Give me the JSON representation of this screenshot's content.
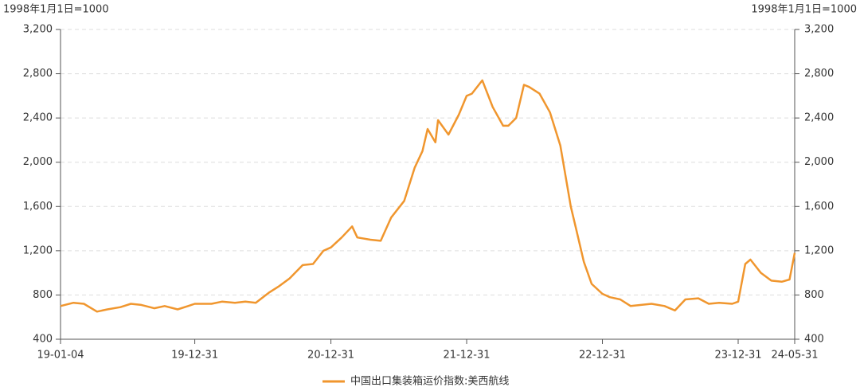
{
  "chart_data": {
    "type": "line",
    "y_label": "1998年1月1日=1000",
    "y2_label": "1998年1月1日=1000",
    "x": [
      "19-01-04",
      "19-02-08",
      "19-03-08",
      "19-04-12",
      "19-05-10",
      "19-06-14",
      "19-07-12",
      "19-08-09",
      "19-09-13",
      "19-10-11",
      "19-11-15",
      "19-12-13",
      "19-12-31",
      "20-01-17",
      "20-02-14",
      "20-03-13",
      "20-04-17",
      "20-05-15",
      "20-06-12",
      "20-07-17",
      "20-08-14",
      "20-09-11",
      "20-10-16",
      "20-11-13",
      "20-12-11",
      "20-12-31",
      "21-01-29",
      "21-02-26",
      "21-03-12",
      "21-04-16",
      "21-05-14",
      "21-06-11",
      "21-07-16",
      "21-08-13",
      "21-09-03",
      "21-09-17",
      "21-10-08",
      "21-10-15",
      "21-11-12",
      "21-12-10",
      "21-12-31",
      "22-01-14",
      "22-02-11",
      "22-03-11",
      "22-04-08",
      "22-04-22",
      "22-05-13",
      "22-06-03",
      "22-06-17",
      "22-07-15",
      "22-08-12",
      "22-09-09",
      "22-10-07",
      "22-10-21",
      "22-11-11",
      "22-12-02",
      "22-12-31",
      "23-01-20",
      "23-02-17",
      "23-03-17",
      "23-04-14",
      "23-05-12",
      "23-06-16",
      "23-07-14",
      "23-08-11",
      "23-09-15",
      "23-10-13",
      "23-11-10",
      "23-12-15",
      "23-12-31",
      "24-01-19",
      "24-02-02",
      "24-03-01",
      "24-03-29",
      "24-04-26",
      "24-05-17",
      "24-05-31"
    ],
    "series": [
      {
        "name": "中国出口集装箱运价指数:美西航线",
        "color": "#f0962e",
        "values": [
          700,
          730,
          720,
          650,
          670,
          690,
          720,
          710,
          680,
          700,
          670,
          700,
          720,
          720,
          720,
          740,
          730,
          740,
          730,
          820,
          880,
          950,
          1070,
          1080,
          1200,
          1230,
          1320,
          1420,
          1320,
          1300,
          1290,
          1500,
          1650,
          1950,
          2100,
          2300,
          2180,
          2380,
          2250,
          2430,
          2600,
          2620,
          2740,
          2500,
          2330,
          2330,
          2400,
          2700,
          2680,
          2620,
          2450,
          2150,
          1600,
          1400,
          1100,
          900,
          810,
          780,
          760,
          700,
          710,
          720,
          700,
          660,
          760,
          770,
          720,
          730,
          720,
          740,
          1080,
          1120,
          1000,
          930,
          920,
          940,
          1180
        ]
      }
    ],
    "xlim": [
      "19-01-04",
      "24-05-31"
    ],
    "xticks": [
      "19-01-04",
      "19-12-31",
      "20-12-31",
      "21-12-31",
      "22-12-31",
      "23-12-31",
      "24-05-31"
    ],
    "ylim": [
      400,
      3200
    ],
    "yticks": [
      400,
      {
        "value": 800,
        "label": "800"
      },
      {
        "value": 1200,
        "label": "1,200"
      },
      {
        "value": 1600,
        "label": "1,600"
      },
      {
        "value": 2000,
        "label": "2,000"
      },
      {
        "value": 2400,
        "label": "2,400"
      },
      {
        "value": 2800,
        "label": "2,800"
      },
      {
        "value": 3200,
        "label": "3,200"
      }
    ],
    "y2lim": [
      400,
      3200
    ],
    "y2ticks": [
      400,
      {
        "value": 800,
        "label": "800"
      },
      {
        "value": 1200,
        "label": "1,200"
      },
      {
        "value": 1600,
        "label": "1,600"
      },
      {
        "value": 2000,
        "label": "2,000"
      },
      {
        "value": 2400,
        "label": "2,400"
      },
      {
        "value": 2800,
        "label": "2,800"
      },
      {
        "value": 3200,
        "label": "3,200"
      }
    ],
    "grid": true,
    "legend": "bottom"
  }
}
